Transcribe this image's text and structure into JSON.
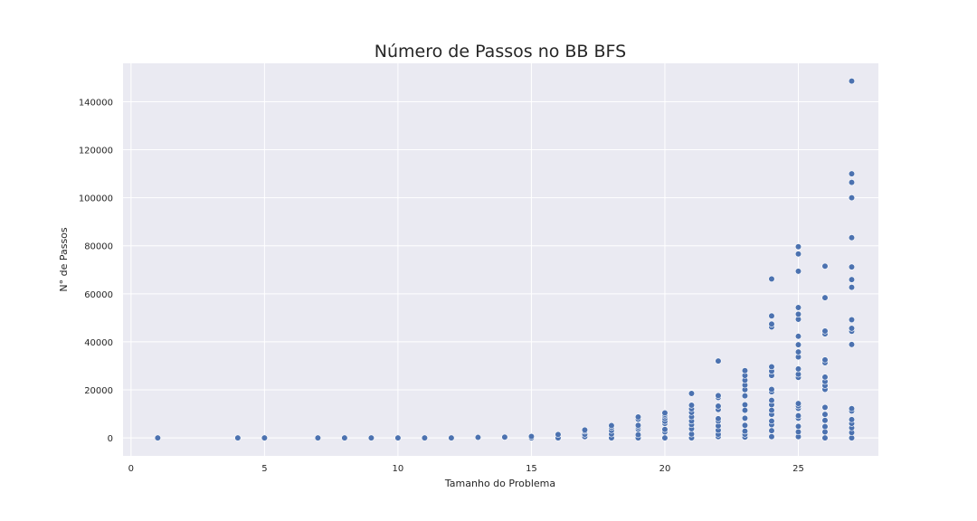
{
  "chart_data": {
    "type": "scatter",
    "title": "Número de Passos no BB BFS",
    "xlabel": "Tamanho do Problema",
    "ylabel": "N° de Passos",
    "xlim": [
      -0.3,
      28
    ],
    "ylim": [
      -7500,
      156000
    ],
    "xticks": [
      0,
      5,
      10,
      15,
      20,
      25
    ],
    "yticks": [
      0,
      20000,
      40000,
      60000,
      80000,
      100000,
      120000,
      140000
    ],
    "grid": true,
    "colors": {
      "background": "#eaeaf2",
      "grid": "#ffffff",
      "marker": "#4c72b0"
    },
    "series": [
      {
        "points": [
          [
            1,
            0
          ],
          [
            4,
            0
          ],
          [
            5,
            0
          ],
          [
            7,
            0
          ],
          [
            8,
            0
          ],
          [
            9,
            0
          ],
          [
            10,
            0
          ],
          [
            11,
            0
          ],
          [
            12,
            0
          ],
          [
            13,
            200
          ],
          [
            14,
            300
          ],
          [
            15,
            0
          ],
          [
            15,
            600
          ],
          [
            16,
            0
          ],
          [
            16,
            1400
          ],
          [
            17,
            500
          ],
          [
            17,
            1500
          ],
          [
            17,
            2800
          ],
          [
            17,
            3300
          ],
          [
            18,
            0
          ],
          [
            18,
            1600
          ],
          [
            18,
            3100
          ],
          [
            18,
            4300
          ],
          [
            18,
            5100
          ],
          [
            19,
            0
          ],
          [
            19,
            1300
          ],
          [
            19,
            3600
          ],
          [
            19,
            4500
          ],
          [
            19,
            5200
          ],
          [
            19,
            7800
          ],
          [
            19,
            8700
          ],
          [
            20,
            0
          ],
          [
            20,
            2500
          ],
          [
            20,
            3500
          ],
          [
            20,
            6000
          ],
          [
            20,
            6900
          ],
          [
            20,
            8100
          ],
          [
            20,
            9100
          ],
          [
            20,
            9800
          ],
          [
            20,
            10400
          ],
          [
            21,
            0
          ],
          [
            21,
            1600
          ],
          [
            21,
            3800
          ],
          [
            21,
            5500
          ],
          [
            21,
            7000
          ],
          [
            21,
            8800
          ],
          [
            21,
            10600
          ],
          [
            21,
            12100
          ],
          [
            21,
            13600
          ],
          [
            21,
            18500
          ],
          [
            22,
            500
          ],
          [
            22,
            1500
          ],
          [
            22,
            3200
          ],
          [
            22,
            5000
          ],
          [
            22,
            7000
          ],
          [
            22,
            8000
          ],
          [
            22,
            11800
          ],
          [
            22,
            13200
          ],
          [
            22,
            16800
          ],
          [
            22,
            17600
          ],
          [
            22,
            32000
          ],
          [
            23,
            300
          ],
          [
            23,
            1500
          ],
          [
            23,
            2800
          ],
          [
            23,
            5200
          ],
          [
            23,
            8200
          ],
          [
            23,
            11500
          ],
          [
            23,
            13800
          ],
          [
            23,
            17500
          ],
          [
            23,
            20100
          ],
          [
            23,
            22000
          ],
          [
            23,
            24000
          ],
          [
            23,
            26000
          ],
          [
            23,
            28000
          ],
          [
            24,
            500
          ],
          [
            24,
            3000
          ],
          [
            24,
            5500
          ],
          [
            24,
            7000
          ],
          [
            24,
            9800
          ],
          [
            24,
            11500
          ],
          [
            24,
            13800
          ],
          [
            24,
            15600
          ],
          [
            24,
            19200
          ],
          [
            24,
            20200
          ],
          [
            24,
            26000
          ],
          [
            24,
            27800
          ],
          [
            24,
            29600
          ],
          [
            24,
            46200
          ],
          [
            24,
            47400
          ],
          [
            24,
            50800
          ],
          [
            24,
            66200
          ],
          [
            25,
            500
          ],
          [
            25,
            2500
          ],
          [
            25,
            4800
          ],
          [
            25,
            8200
          ],
          [
            25,
            9200
          ],
          [
            25,
            12300
          ],
          [
            25,
            13300
          ],
          [
            25,
            14300
          ],
          [
            25,
            25200
          ],
          [
            25,
            26500
          ],
          [
            25,
            28700
          ],
          [
            25,
            33700
          ],
          [
            25,
            35800
          ],
          [
            25,
            38800
          ],
          [
            25,
            42300
          ],
          [
            25,
            49400
          ],
          [
            25,
            51500
          ],
          [
            25,
            54300
          ],
          [
            25,
            69400
          ],
          [
            25,
            76600
          ],
          [
            25,
            79600
          ],
          [
            26,
            0
          ],
          [
            26,
            2500
          ],
          [
            26,
            4700
          ],
          [
            26,
            7300
          ],
          [
            26,
            9800
          ],
          [
            26,
            12700
          ],
          [
            26,
            20200
          ],
          [
            26,
            21800
          ],
          [
            26,
            23500
          ],
          [
            26,
            25300
          ],
          [
            26,
            31300
          ],
          [
            26,
            32500
          ],
          [
            26,
            43300
          ],
          [
            26,
            44500
          ],
          [
            26,
            58400
          ],
          [
            26,
            71500
          ],
          [
            27,
            0
          ],
          [
            27,
            2200
          ],
          [
            27,
            4200
          ],
          [
            27,
            6000
          ],
          [
            27,
            7600
          ],
          [
            27,
            11200
          ],
          [
            27,
            12200
          ],
          [
            27,
            38900
          ],
          [
            27,
            44400
          ],
          [
            27,
            45600
          ],
          [
            27,
            49200
          ],
          [
            27,
            62700
          ],
          [
            27,
            65900
          ],
          [
            27,
            71200
          ],
          [
            27,
            83400
          ],
          [
            27,
            100000
          ],
          [
            27,
            106400
          ],
          [
            27,
            110000
          ],
          [
            27,
            148600
          ]
        ]
      }
    ]
  }
}
